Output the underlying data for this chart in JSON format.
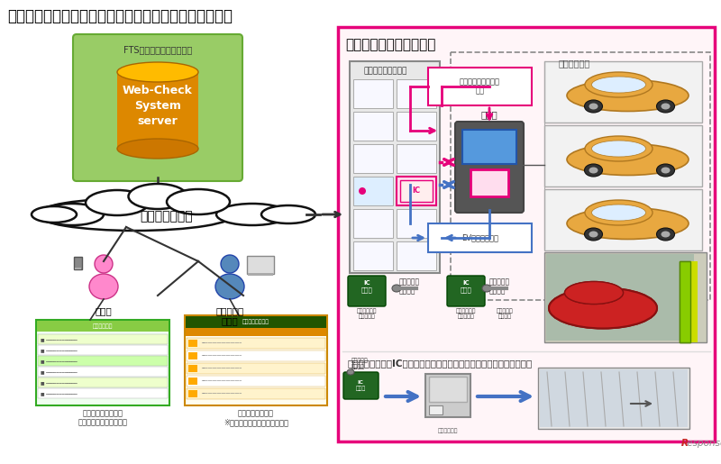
{
  "title": "【マンションシステムと機械式駐車場の連動仕組み図】",
  "title_fontsize": 12,
  "bg_color": "#ffffff",
  "left_box_label": "FTSコントロールセンター",
  "server_text": "Web-Check\nSystem\nserver",
  "left_box_bg": "#99cc66",
  "left_box_border": "#66aa33",
  "internet_label": "インターネット",
  "resident_label": "居住者",
  "manager_label": "マンション\n管理者",
  "right_panel_label": "『レ・ジェイドイクス』",
  "right_panel_border": "#e6007a",
  "right_panel_bg": "#ffffff",
  "dashed_label": "機械式駐車場",
  "locker_label": "フルタイムロッカー",
  "controller_label": "制御盤",
  "pink_box_label": "マンション共通キー\n連動",
  "blue_box_label": "EV充電出力連動",
  "pink_color": "#e6007a",
  "blue_color": "#4472c4",
  "resident_color": "#ff88cc",
  "manager_color": "#5588bb",
  "screen1_label": "利用履歴閲覧サイト\n空いたらメール機能あり",
  "screen2_label": "管理者機用サイト\n※利用状態・履歴出力機能有り",
  "bottom_text": "共通キーや交通系ICカードでマンションの共有施設の通過が可能です。",
  "arrow_blue": "#4472c4"
}
